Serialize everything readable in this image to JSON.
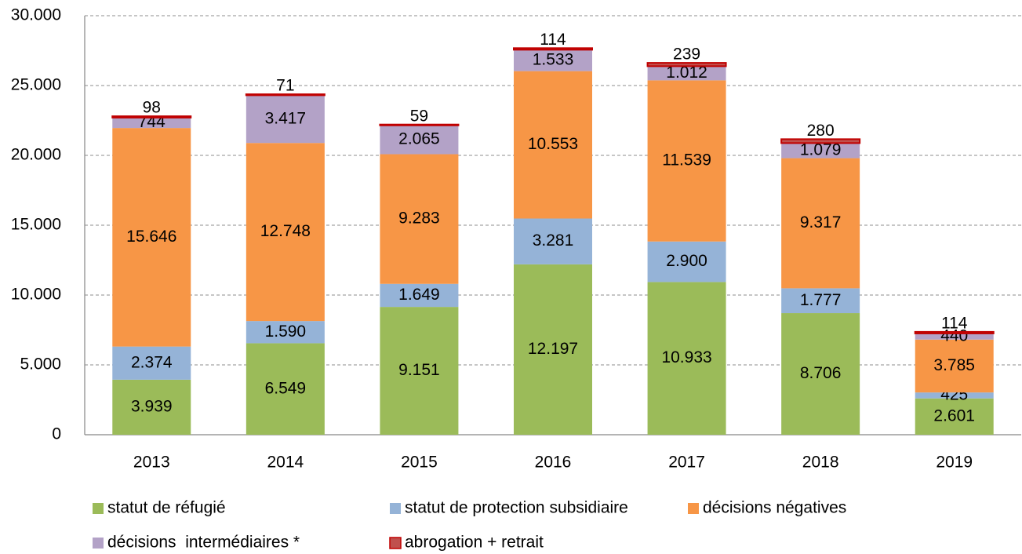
{
  "chart_data": {
    "type": "stacked-bar",
    "categories": [
      "2013",
      "2014",
      "2015",
      "2016",
      "2017",
      "2018",
      "2019"
    ],
    "series": [
      {
        "name": "statut de réfugié",
        "color": "#9bbb59",
        "values": [
          3939,
          6549,
          9151,
          12197,
          10933,
          8706,
          2601
        ],
        "value_labels": [
          "3.939",
          "6.549",
          "9.151",
          "12.197",
          "10.933",
          "8.706",
          "2.601"
        ]
      },
      {
        "name": "statut de protection subsidiaire",
        "color": "#95b3d7",
        "values": [
          2374,
          1590,
          1649,
          3281,
          2900,
          1777,
          425
        ],
        "value_labels": [
          "2.374",
          "1.590",
          "1.649",
          "3.281",
          "2.900",
          "1.777",
          "425"
        ]
      },
      {
        "name": "décisions négatives",
        "color": "#f79646",
        "values": [
          15646,
          12748,
          9283,
          10553,
          11539,
          9317,
          3785
        ],
        "value_labels": [
          "15.646",
          "12.748",
          "9.283",
          "10.553",
          "11.539",
          "9.317",
          "3.785"
        ]
      },
      {
        "name": "décisions  intermédiaires *",
        "color": "#b3a2c7",
        "values": [
          744,
          3417,
          2065,
          1533,
          1012,
          1079,
          440
        ],
        "value_labels": [
          "744",
          "3.417",
          "2.065",
          "1.533",
          "1.012",
          "1.079",
          "440"
        ]
      },
      {
        "name": "abrogation + retrait",
        "color": "#c0504d",
        "values": [
          98,
          71,
          59,
          114,
          239,
          280,
          114
        ],
        "value_labels": [
          "98",
          "71",
          "59",
          "114",
          "239",
          "280",
          "114"
        ]
      }
    ],
    "ylim": [
      0,
      30000
    ],
    "yticks": [
      0,
      {
        "value": 5000,
        "label": "5.000"
      },
      {
        "value": 10000,
        "label": "10.000"
      },
      {
        "value": 15000,
        "label": "15.000"
      },
      {
        "value": 20000,
        "label": "20.000"
      },
      {
        "value": 25000,
        "label": "25.000"
      },
      {
        "value": 30000,
        "label": "30.000"
      }
    ],
    "grid": true
  }
}
